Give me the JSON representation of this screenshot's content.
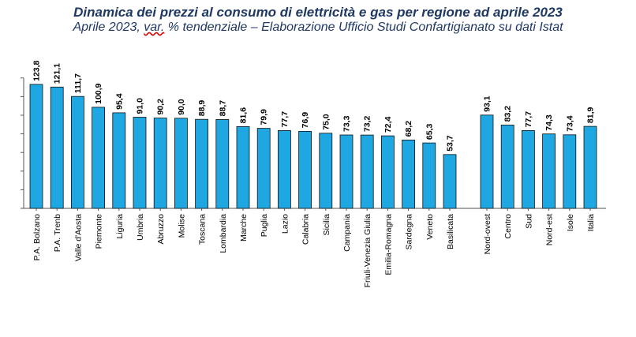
{
  "title": "Dinamica dei prezzi al consumo di elettricità e gas per regione ad aprile 2023",
  "subtitle_prefix": "Aprile 2023, ",
  "subtitle_underlined": "var.",
  "subtitle_suffix": " % tendenziale – Elaborazione Ufficio Studi Confartigianato su dati Istat",
  "chart_data": {
    "type": "bar",
    "title": "Dinamica dei prezzi al consumo di elettricità e gas per regione ad aprile 2023",
    "subtitle": "Aprile 2023, var. % tendenziale – Elaborazione Ufficio Studi Confartigianato su dati Istat",
    "xlabel": "",
    "ylabel": "",
    "ylim": [
      0,
      130
    ],
    "grid": false,
    "bar_color": "#1ea7e1",
    "bar_edge_color": "#111111",
    "groups": [
      {
        "categories": [
          "P.A. Bolzano",
          "P.A. Trenb",
          "Valle d'Aosta",
          "Piemonte",
          "Liguria",
          "Umbria",
          "Abruzzo",
          "Molise",
          "Toscana",
          "Lombardia",
          "Marche",
          "Puglia",
          "Lazio",
          "Calabria",
          "Sicilia",
          "Campania",
          "Friuli-Venezia Giulia",
          "Emilia-Romagna",
          "Sardegna",
          "Veneto",
          "Basilicata"
        ],
        "values": [
          123.8,
          121.1,
          111.7,
          100.9,
          95.4,
          91.0,
          90.2,
          90.0,
          88.9,
          88.7,
          81.6,
          79.9,
          77.7,
          76.9,
          75.0,
          73.3,
          73.2,
          72.4,
          68.2,
          65.3,
          53.7
        ],
        "labels": [
          "123,8",
          "121,1",
          "111,7",
          "100,9",
          "95,4",
          "91,0",
          "90,2",
          "90,0",
          "88,9",
          "88,7",
          "81,6",
          "79,9",
          "77,7",
          "76,9",
          "75,0",
          "73,3",
          "73,2",
          "72,4",
          "68,2",
          "65,3",
          "53,7"
        ]
      },
      {
        "categories": [
          "Nord-ovest",
          "Centro",
          "Sud",
          "Nord-est",
          "Isole",
          "Italia"
        ],
        "values": [
          93.1,
          83.2,
          77.7,
          74.3,
          73.4,
          81.9
        ],
        "labels": [
          "93,1",
          "83,2",
          "77,7",
          "74,3",
          "73,4",
          "81,9"
        ]
      }
    ]
  }
}
